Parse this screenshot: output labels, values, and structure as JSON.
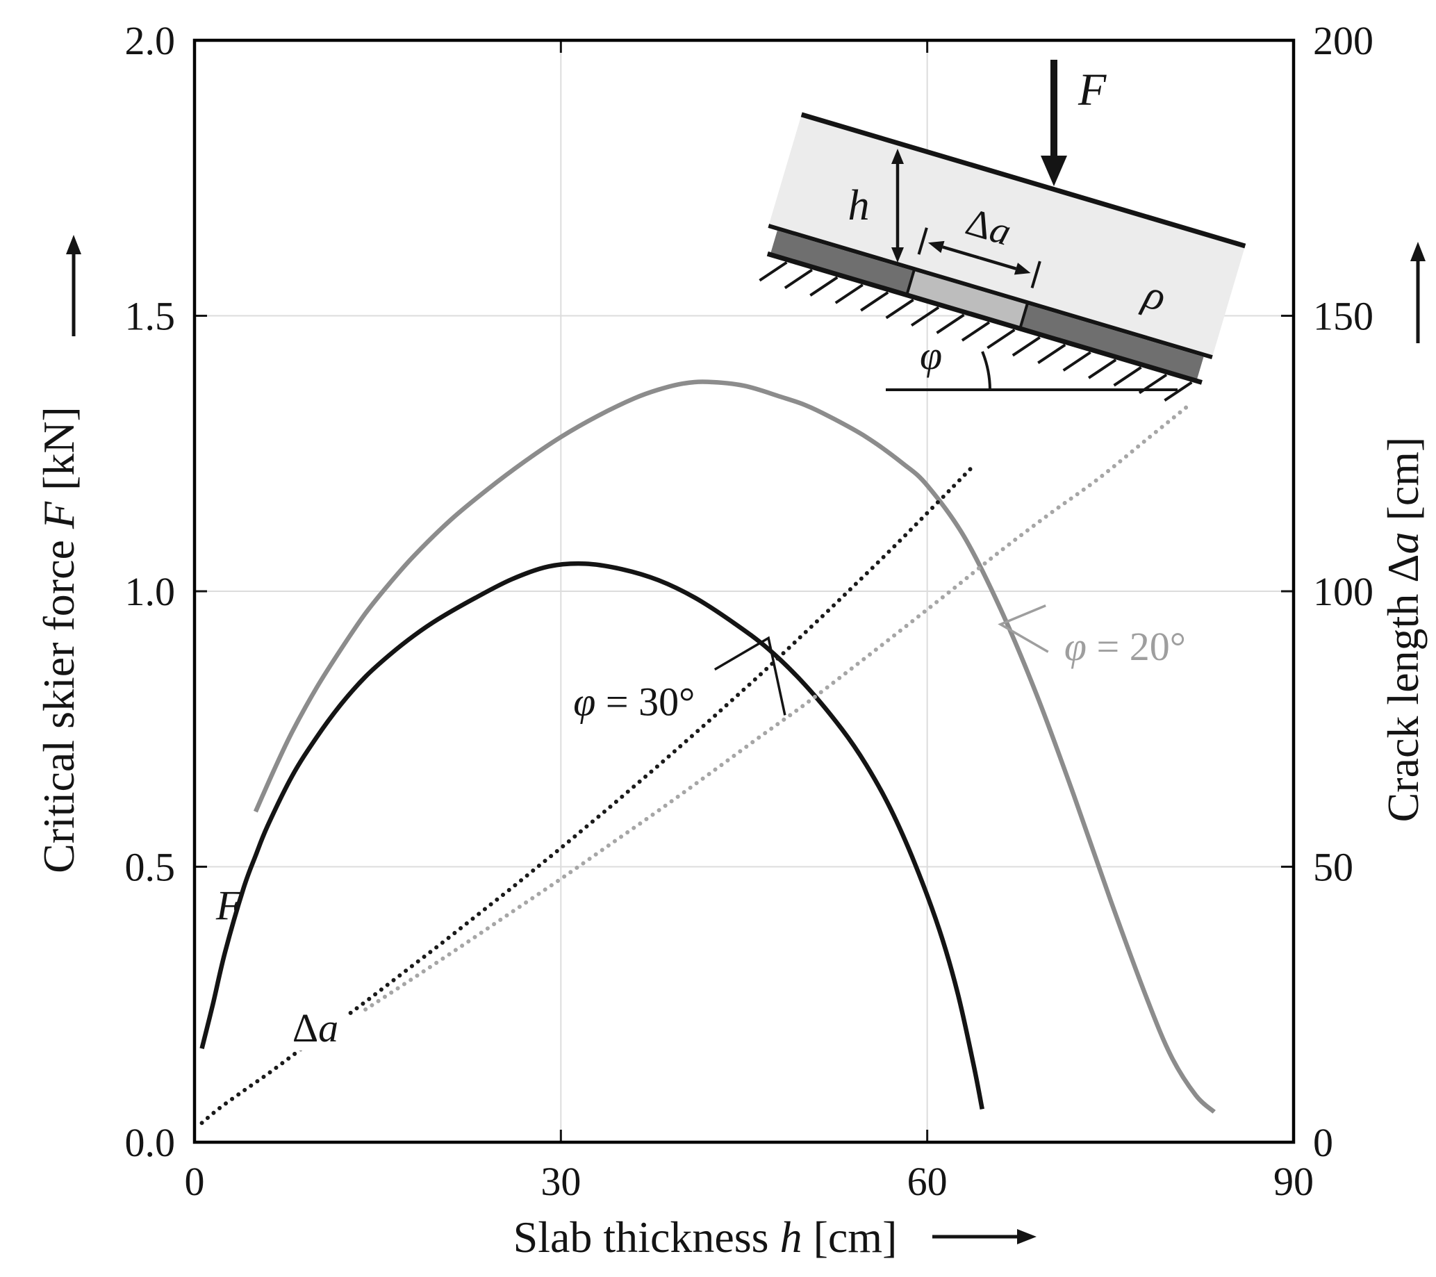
{
  "figure": {
    "background": "#ffffff",
    "frame_color": "#000000",
    "grid_color": "#dcdcdc",
    "ink_color": "#141414",
    "gray_color": "#8c8c8c"
  },
  "chart_data": {
    "type": "line",
    "title": "",
    "xlabel": "Slab thickness h [cm]",
    "xlabel_rich": [
      {
        "t": "Slab thickness ",
        "i": false
      },
      {
        "t": "h",
        "i": true
      },
      {
        "t": " [cm]",
        "i": false
      }
    ],
    "ylabel_left": "Critical skier force F [kN]",
    "ylabel_left_rich": [
      {
        "t": "Critical skier force ",
        "i": false
      },
      {
        "t": "F",
        "i": true
      },
      {
        "t": " [kN]",
        "i": false
      }
    ],
    "ylabel_right": "Crack length Δa [cm]",
    "ylabel_right_rich": [
      {
        "t": "Crack length ",
        "i": false
      },
      {
        "t": "Δ",
        "i": false
      },
      {
        "t": "a",
        "i": true
      },
      {
        "t": " [cm]",
        "i": false
      }
    ],
    "xlim": [
      0,
      90
    ],
    "ylim_left": [
      0,
      2.0
    ],
    "ylim_right": [
      0,
      200
    ],
    "xticks": [
      {
        "v": 0,
        "label": "0"
      },
      {
        "v": 30,
        "label": "30"
      },
      {
        "v": 60,
        "label": "60"
      },
      {
        "v": 90,
        "label": "90"
      }
    ],
    "yticks_left": [
      {
        "v": 0,
        "label": "0.0"
      },
      {
        "v": 0.5,
        "label": "0.5"
      },
      {
        "v": 1,
        "label": "1.0"
      },
      {
        "v": 1.5,
        "label": "1.5"
      },
      {
        "v": 2,
        "label": "2.0"
      }
    ],
    "yticks_right": [
      {
        "v": 0,
        "label": "0"
      },
      {
        "v": 50,
        "label": "50"
      },
      {
        "v": 100,
        "label": "100"
      },
      {
        "v": 150,
        "label": "150"
      },
      {
        "v": 200,
        "label": "200"
      }
    ],
    "grid": true,
    "legend_position": "none",
    "series": [
      {
        "id": "force-phi30",
        "name": "Critical skier force F, φ = 30°",
        "axis": "left",
        "style": "solid",
        "color": "#141414",
        "width": 6.5,
        "points": [
          [
            0.6,
            0.17
          ],
          [
            1.5,
            0.25
          ],
          [
            2.5,
            0.345
          ],
          [
            4,
            0.46
          ],
          [
            5,
            0.52
          ],
          [
            6,
            0.575
          ],
          [
            8,
            0.665
          ],
          [
            10,
            0.735
          ],
          [
            12,
            0.795
          ],
          [
            14,
            0.845
          ],
          [
            16,
            0.885
          ],
          [
            18,
            0.92
          ],
          [
            20,
            0.95
          ],
          [
            23,
            0.988
          ],
          [
            26,
            1.022
          ],
          [
            29,
            1.045
          ],
          [
            32,
            1.05
          ],
          [
            35,
            1.04
          ],
          [
            38,
            1.02
          ],
          [
            41,
            0.988
          ],
          [
            44,
            0.945
          ],
          [
            47,
            0.895
          ],
          [
            50,
            0.83
          ],
          [
            53,
            0.75
          ],
          [
            55,
            0.685
          ],
          [
            57,
            0.605
          ],
          [
            59,
            0.505
          ],
          [
            61,
            0.385
          ],
          [
            62.5,
            0.27
          ],
          [
            63.8,
            0.14
          ],
          [
            64.5,
            0.06
          ]
        ]
      },
      {
        "id": "force-phi20",
        "name": "Critical skier force F, φ = 20°",
        "axis": "left",
        "style": "solid",
        "color": "#8c8c8c",
        "width": 6.5,
        "points": [
          [
            5,
            0.6
          ],
          [
            6.5,
            0.675
          ],
          [
            8,
            0.745
          ],
          [
            10,
            0.825
          ],
          [
            12,
            0.895
          ],
          [
            14,
            0.96
          ],
          [
            16,
            1.015
          ],
          [
            18,
            1.065
          ],
          [
            21,
            1.13
          ],
          [
            24,
            1.185
          ],
          [
            27,
            1.235
          ],
          [
            30,
            1.28
          ],
          [
            33,
            1.318
          ],
          [
            36,
            1.35
          ],
          [
            38,
            1.366
          ],
          [
            40,
            1.377
          ],
          [
            42,
            1.38
          ],
          [
            45,
            1.373
          ],
          [
            48,
            1.353
          ],
          [
            50,
            1.338
          ],
          [
            52,
            1.317
          ],
          [
            55,
            1.28
          ],
          [
            58,
            1.232
          ],
          [
            60,
            1.192
          ],
          [
            63,
            1.1
          ],
          [
            66,
            0.968
          ],
          [
            69,
            0.81
          ],
          [
            72,
            0.63
          ],
          [
            75,
            0.44
          ],
          [
            78,
            0.26
          ],
          [
            80,
            0.155
          ],
          [
            82,
            0.085
          ],
          [
            83.5,
            0.055
          ]
        ]
      },
      {
        "id": "crack-phi30",
        "name": "Crack length Δa, φ = 30°",
        "axis": "right",
        "style": "dotted",
        "color": "#1a1a1a",
        "width": 6,
        "points": [
          [
            0.6,
            3.5
          ],
          [
            2,
            6.1
          ],
          [
            4,
            9.3
          ],
          [
            6,
            12.4
          ],
          [
            8,
            15.7
          ],
          [
            10,
            19
          ],
          [
            12,
            22.2
          ],
          [
            14,
            25.5
          ],
          [
            16,
            28.9
          ],
          [
            18,
            32.3
          ],
          [
            20,
            35.7
          ],
          [
            22,
            39.2
          ],
          [
            24,
            42.7
          ],
          [
            26,
            46.2
          ],
          [
            28,
            49.8
          ],
          [
            30,
            53.4
          ],
          [
            32,
            57.1
          ],
          [
            34,
            60.8
          ],
          [
            36,
            64.6
          ],
          [
            38,
            68.4
          ],
          [
            40,
            72.3
          ],
          [
            42,
            76.2
          ],
          [
            44,
            80.2
          ],
          [
            46,
            84.2
          ],
          [
            48,
            88.3
          ],
          [
            50,
            92.5
          ],
          [
            52,
            96.7
          ],
          [
            54,
            101
          ],
          [
            56,
            105.3
          ],
          [
            58,
            109.7
          ],
          [
            60,
            114.2
          ],
          [
            62,
            118.7
          ],
          [
            63.8,
            122.8
          ]
        ]
      },
      {
        "id": "crack-phi20",
        "name": "Crack length Δa, φ = 20°",
        "axis": "right",
        "style": "dotted",
        "color": "#a6a6a6",
        "width": 6,
        "points": [
          [
            14,
            24.1
          ],
          [
            18,
            29.9
          ],
          [
            22,
            35.8
          ],
          [
            26,
            41.8
          ],
          [
            30,
            47.8
          ],
          [
            34,
            54
          ],
          [
            38,
            60.2
          ],
          [
            42,
            66.6
          ],
          [
            46,
            73.1
          ],
          [
            50,
            79.5
          ],
          [
            54,
            86.3
          ],
          [
            58,
            93.2
          ],
          [
            62,
            100.2
          ],
          [
            66,
            107.3
          ],
          [
            70,
            114
          ],
          [
            74,
            120.4
          ],
          [
            78,
            127.6
          ],
          [
            81.5,
            133.9
          ]
        ]
      }
    ],
    "annotations": [
      {
        "id": "label-f",
        "text": "F",
        "rich": [
          {
            "t": "F",
            "i": true
          }
        ],
        "x": 2.8,
        "y": 0.43,
        "color": "#141414",
        "size": 60,
        "bg": false
      },
      {
        "id": "label-delta-a",
        "text": "Δa",
        "rich": [
          {
            "t": "Δ",
            "i": false
          },
          {
            "t": "a",
            "i": true
          }
        ],
        "x": 9.9,
        "y": 0.208,
        "color": "#141414",
        "size": 58,
        "bg": true
      },
      {
        "id": "label-phi-30",
        "text": "φ = 30°",
        "rich": [
          {
            "t": "φ",
            "i": true
          },
          {
            "t": " = 30°",
            "i": false
          }
        ],
        "x": 36.0,
        "y": 0.8,
        "color": "#141414",
        "size": 58,
        "bg": false
      },
      {
        "id": "label-phi-20",
        "text": "φ = 20°",
        "rich": [
          {
            "t": "φ",
            "i": true
          },
          {
            "t": " = 20°",
            "i": false
          }
        ],
        "x": 76.2,
        "y": 0.9,
        "color": "#9e9e9e",
        "size": 58,
        "bg": false
      }
    ],
    "leaders": [
      {
        "id": "leader-phi-30",
        "color": "#141414",
        "points": [
          [
            42.6,
            0.858
          ],
          [
            47.0,
            0.915
          ],
          [
            48.35,
            0.775
          ]
        ]
      },
      {
        "id": "leader-phi-20",
        "color": "#9e9e9e",
        "points": [
          [
            69.7,
            0.974
          ],
          [
            66.0,
            0.94
          ],
          [
            69.9,
            0.89
          ]
        ]
      }
    ]
  },
  "inset": {
    "labels": {
      "force": "F",
      "thickness": "h",
      "crack_length_delta": "Δ",
      "crack_length_var": "a",
      "density": "ρ",
      "slope_angle": "φ"
    },
    "slope_angle_deg": 16.5,
    "colors": {
      "slab": "#ececec",
      "weak_layer": "#6f6f6f",
      "crack": "#bdbdbd",
      "outline": "#141414"
    }
  }
}
